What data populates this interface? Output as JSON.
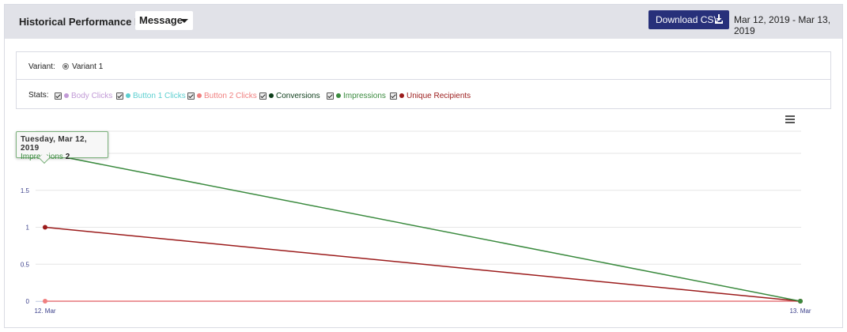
{
  "header": {
    "title": "Historical Performance By",
    "group_by": "Message",
    "download_label": "Download CSV",
    "date_range": "Mar 12, 2019 - Mar 13, 2019"
  },
  "filters": {
    "variant_label": "Variant:",
    "variant_value": "Variant 1",
    "stats_label": "Stats:",
    "stats": [
      {
        "label": "Body Clicks",
        "color": "#c19ad6",
        "checked": true
      },
      {
        "label": "Button 1 Clicks",
        "color": "#5ccfd0",
        "checked": true
      },
      {
        "label": "Button 2 Clicks",
        "color": "#f07f7f",
        "checked": true
      },
      {
        "label": "Conversions",
        "color": "#0d3d1a",
        "checked": true
      },
      {
        "label": "Impressions",
        "color": "#3a8a3e",
        "checked": true
      },
      {
        "label": "Unique Recipients",
        "color": "#9b1b1b",
        "checked": true
      }
    ]
  },
  "chart_data": {
    "type": "line",
    "x": [
      "12. Mar",
      "13. Mar"
    ],
    "y_ticks": [
      "0",
      "0.5",
      "1",
      "1.5",
      "2"
    ],
    "ylim": [
      0,
      2.3
    ],
    "grid": true,
    "series": [
      {
        "name": "Button 2 Clicks",
        "color": "#f07f7f",
        "values": [
          0,
          0
        ]
      },
      {
        "name": "Unique Recipients",
        "color": "#9b1b1b",
        "values": [
          1,
          0
        ]
      },
      {
        "name": "Impressions",
        "color": "#3a8a3e",
        "values": [
          2,
          0
        ]
      }
    ],
    "tooltip": {
      "date": "Tuesday, Mar 12, 2019",
      "series": "Impressions",
      "value": "2"
    }
  }
}
